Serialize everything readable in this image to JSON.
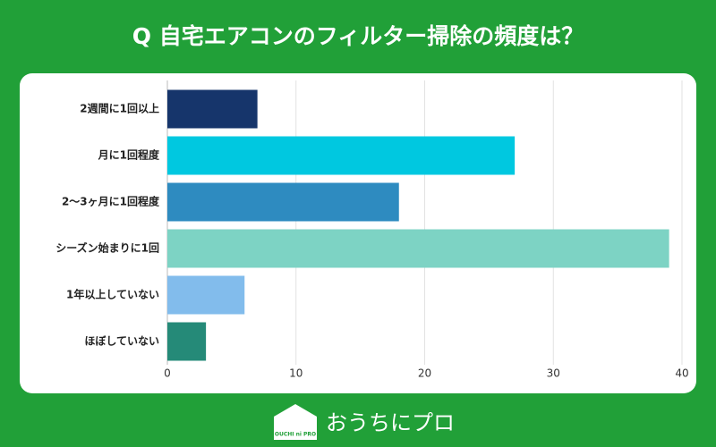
{
  "chart_data": {
    "type": "barh",
    "title": "Q 自宅エアコンのフィルター掃除の頻度は？",
    "categories": [
      "2週間に1回以上",
      "月に1回程度",
      "2～3ヶ月に1回程度",
      "シーズン始まりに1回",
      "1年以上していない",
      "ほぼしていない"
    ],
    "values": [
      7,
      27,
      18,
      39,
      6,
      3
    ],
    "colors": [
      "#16356b",
      "#00c8e0",
      "#2e8bc0",
      "#7dd3c4",
      "#82bcec",
      "#258a78"
    ],
    "xlim": [
      0,
      40
    ],
    "xticks": [
      0,
      10,
      20,
      30,
      40
    ],
    "grid": true
  },
  "footer": {
    "brand": "おうちにプロ",
    "logo_text": "OUCHI ni PRO"
  }
}
